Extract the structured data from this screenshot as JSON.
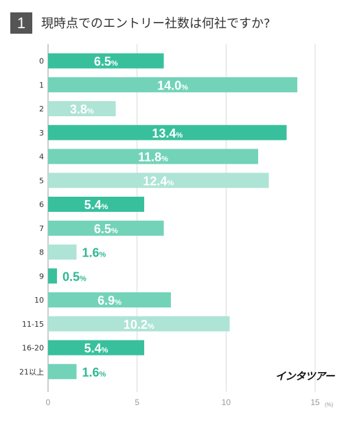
{
  "question": {
    "number": "1",
    "title": "現時点でのエントリー社数は何社ですか?"
  },
  "brand_logo": "インタツアー",
  "chart_data": {
    "type": "bar",
    "orientation": "horizontal",
    "categories": [
      "0",
      "1",
      "2",
      "3",
      "4",
      "5",
      "6",
      "7",
      "8",
      "9",
      "10",
      "11-15",
      "16-20",
      "21以上"
    ],
    "values": [
      6.5,
      14.0,
      3.8,
      13.4,
      11.8,
      12.4,
      5.4,
      6.5,
      1.6,
      0.5,
      6.9,
      10.2,
      5.4,
      1.6
    ],
    "value_labels": [
      "6.5",
      "14.0",
      "3.8",
      "13.4",
      "11.8",
      "12.4",
      "5.4",
      "6.5",
      "1.6",
      "0.5",
      "6.9",
      "10.2",
      "5.4",
      "1.6"
    ],
    "value_suffix": "%",
    "xlim": [
      0,
      15
    ],
    "x_ticks": [
      "0",
      "5",
      "10",
      "15"
    ],
    "x_unit": "(%)",
    "grid": true,
    "colors": [
      "#38c09c",
      "#72d3b8",
      "#aee4d5"
    ]
  }
}
